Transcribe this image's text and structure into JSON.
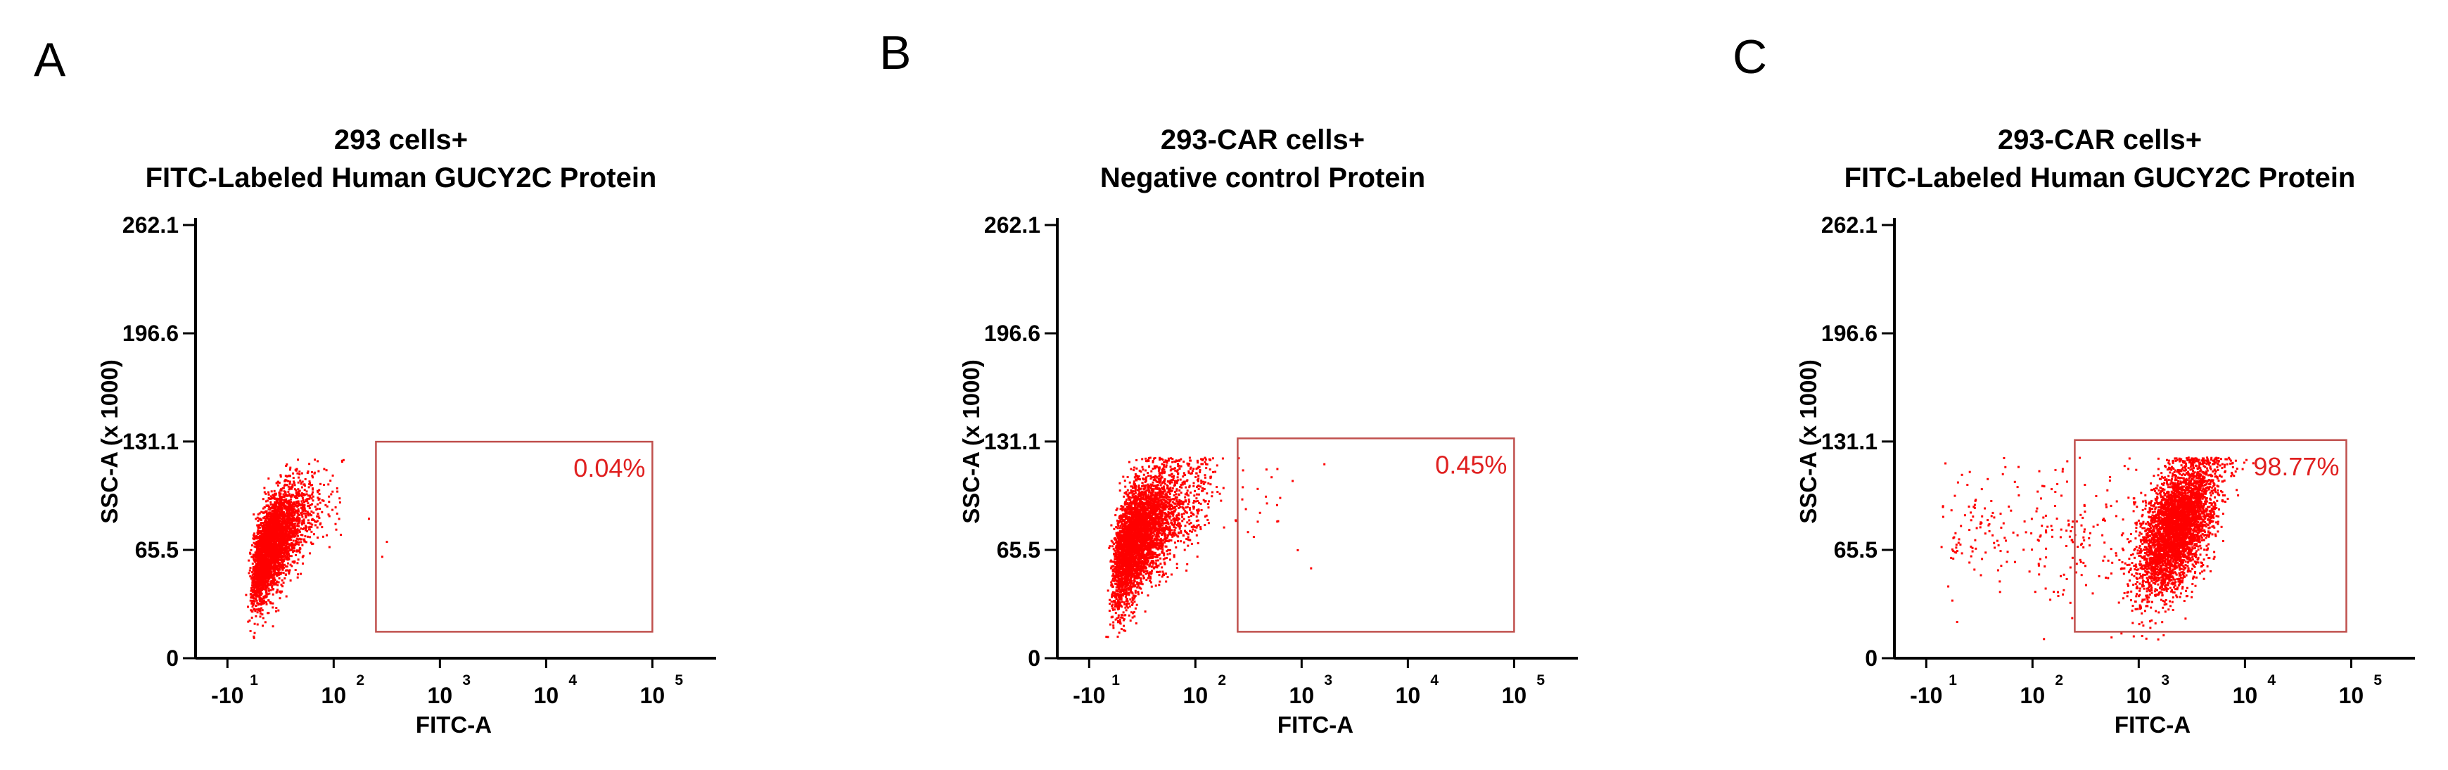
{
  "colors": {
    "dots": "#ff0000",
    "gate": "#c0504d",
    "gate_text": "#e02020",
    "axis": "#000000"
  },
  "chart_data": [
    {
      "type": "scatter",
      "panel": "A",
      "title_lines": [
        "293 cells+",
        "FITC-Labeled Human GUCY2C Protein"
      ],
      "xlabel": "FITC-A",
      "ylabel": "SSC-A (x 1000)",
      "xscale": "biexponential (log)",
      "xticks": [
        {
          "value": -10,
          "base": "-10",
          "exp": "1"
        },
        {
          "value": 100,
          "base": "10",
          "exp": "2"
        },
        {
          "value": 1000,
          "base": "10",
          "exp": "3"
        },
        {
          "value": 10000,
          "base": "10",
          "exp": "4"
        },
        {
          "value": 100000,
          "base": "10",
          "exp": "5"
        }
      ],
      "yticks": [
        0,
        65.5,
        131.1,
        196.6,
        262.1
      ],
      "ylim": [
        0,
        262.1
      ],
      "gate": {
        "x_range": [
          250,
          100000
        ],
        "y_range": [
          16,
          131
        ],
        "percent": "0.04%"
      },
      "populations": [
        {
          "log_center": [
            1.55,
            70
          ],
          "spread": [
            0.17,
            13
          ],
          "tilt": 100,
          "count": 3600
        }
      ],
      "outliers": [
        [
          210,
          85
        ],
        [
          310,
          71
        ],
        [
          280,
          62
        ]
      ]
    },
    {
      "type": "scatter",
      "panel": "B",
      "title_lines": [
        "293-CAR cells+",
        "Negative control Protein"
      ],
      "xlabel": "FITC-A",
      "ylabel": "SSC-A (x 1000)",
      "xscale": "biexponential (log)",
      "xticks": [
        {
          "value": -10,
          "base": "-10",
          "exp": "1"
        },
        {
          "value": 100,
          "base": "10",
          "exp": "2"
        },
        {
          "value": 1000,
          "base": "10",
          "exp": "3"
        },
        {
          "value": 10000,
          "base": "10",
          "exp": "4"
        },
        {
          "value": 100000,
          "base": "10",
          "exp": "5"
        }
      ],
      "yticks": [
        0,
        65.5,
        131.1,
        196.6,
        262.1
      ],
      "ylim": [
        0,
        262.1
      ],
      "gate": {
        "x_range": [
          250,
          100000
        ],
        "y_range": [
          16,
          133
        ],
        "percent": "0.45%"
      },
      "populations": [
        {
          "log_center": [
            1.6,
            75
          ],
          "spread": [
            0.2,
            16
          ],
          "tilt": 100,
          "count": 4200
        },
        {
          "log_center": [
            2.55,
            92
          ],
          "spread": [
            0.2,
            14
          ],
          "tilt": 20,
          "count": 24
        }
      ],
      "outliers": [
        [
          900,
          66
        ],
        [
          1200,
          55
        ],
        [
          1600,
          118
        ]
      ]
    },
    {
      "type": "scatter",
      "panel": "C",
      "title_lines": [
        "293-CAR cells+",
        "FITC-Labeled Human GUCY2C Protein"
      ],
      "xlabel": "FITC-A",
      "ylabel": "SSC-A (x 1000)",
      "xscale": "biexponential (log)",
      "xticks": [
        {
          "value": -10,
          "base": "-10",
          "exp": "1"
        },
        {
          "value": 100,
          "base": "10",
          "exp": "2"
        },
        {
          "value": 1000,
          "base": "10",
          "exp": "3"
        },
        {
          "value": 10000,
          "base": "10",
          "exp": "4"
        },
        {
          "value": 100000,
          "base": "10",
          "exp": "5"
        }
      ],
      "yticks": [
        0,
        65.5,
        131.1,
        196.6,
        262.1
      ],
      "ylim": [
        0,
        262.1
      ],
      "gate": {
        "x_range": [
          250,
          90000
        ],
        "y_range": [
          16,
          132
        ],
        "percent": "98.77%"
      },
      "populations": [
        {
          "log_center": [
            3.35,
            80
          ],
          "spread": [
            0.18,
            17
          ],
          "tilt": 100,
          "count": 4000
        },
        {
          "log_center": [
            2.15,
            75
          ],
          "spread": [
            0.55,
            22
          ],
          "tilt": 0,
          "count": 260
        }
      ],
      "outliers": []
    }
  ]
}
